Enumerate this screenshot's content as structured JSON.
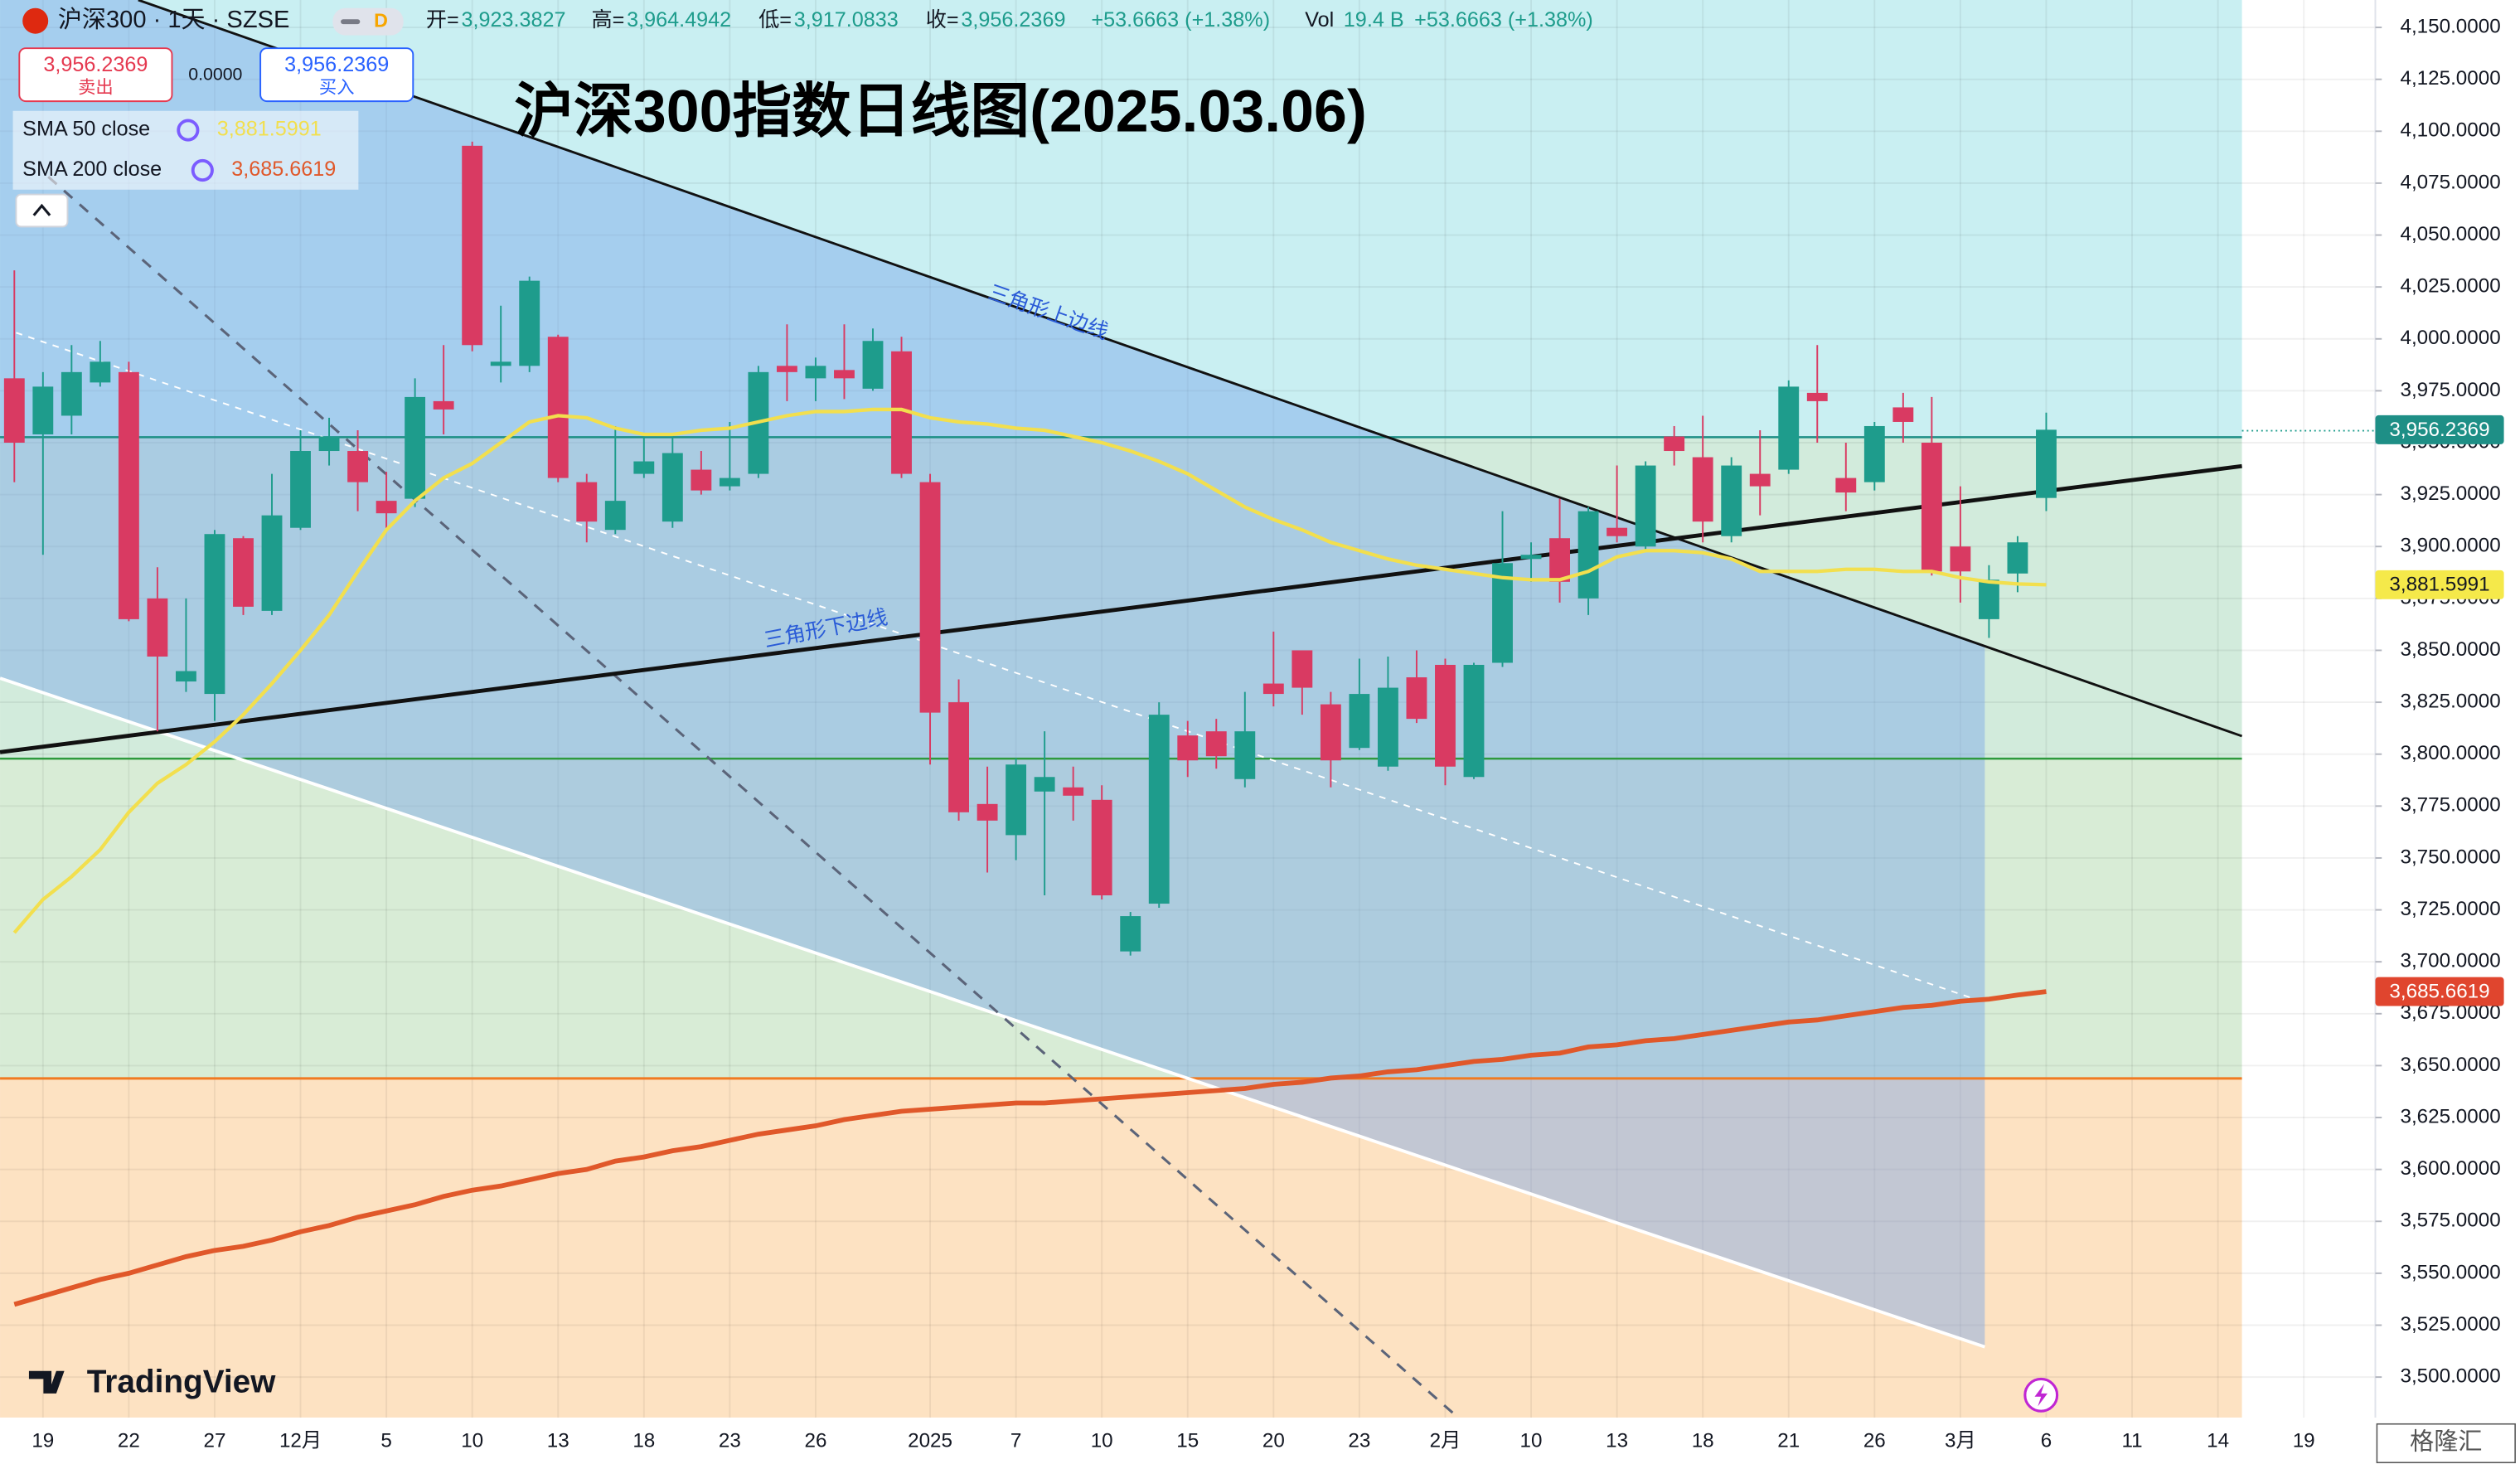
{
  "chart_data": {
    "type": "candlestick",
    "title": "沪深300指数日线图(2025.03.06)",
    "symbol": "沪深300 · 1天 · SZSE",
    "interval_badge": "D",
    "ohlc": [
      {
        "label": "开=",
        "value": "3,923.3827"
      },
      {
        "label": "高=",
        "value": "3,964.4942"
      },
      {
        "label": "低=",
        "value": "3,917.0833"
      },
      {
        "label": "收=",
        "value": "3,956.2369"
      }
    ],
    "change": "+53.6663 (+1.38%)",
    "vol_label": "Vol",
    "vol_value": "19.4 B",
    "vol_change": "+53.6663 (+1.38%)",
    "trade": {
      "sell_price": "3,956.2369",
      "sell_label": "卖出",
      "spread": "0.0000",
      "buy_price": "3,956.2369",
      "buy_label": "买入"
    },
    "last_price_label": "3,956.2369",
    "annotations": [
      "三角形上边线",
      "三角形下边线"
    ],
    "logo": "TradingView",
    "watermark": "格隆汇",
    "categories": [
      null,
      "19",
      null,
      null,
      "22",
      null,
      null,
      "27",
      null,
      null,
      "12月",
      null,
      null,
      "5",
      null,
      null,
      "10",
      null,
      null,
      "13",
      null,
      null,
      "18",
      null,
      null,
      "23",
      null,
      null,
      "26",
      null,
      null,
      null,
      "2025",
      null,
      null,
      "7",
      null,
      null,
      "10",
      null,
      null,
      "15",
      null,
      null,
      "20",
      null,
      null,
      "23",
      null,
      null,
      "2月",
      null,
      null,
      "10",
      null,
      null,
      "13",
      null,
      null,
      "18",
      null,
      null,
      "21",
      null,
      null,
      "26",
      null,
      null,
      "3月",
      null,
      null,
      "6",
      null,
      null,
      "11",
      null,
      null,
      "14",
      null,
      null,
      "19",
      null,
      null
    ],
    "open": [
      3981,
      3954,
      3963,
      3979,
      3984,
      3875,
      3835,
      3829,
      3904,
      3869,
      3909,
      3946,
      3946,
      3922,
      3923,
      3970,
      4093,
      3987,
      3987,
      4001,
      3931,
      3908,
      3935,
      3912,
      3937,
      3929,
      3935,
      3987,
      3981,
      3985,
      3976,
      3994,
      3931,
      3825,
      3776,
      3761,
      3782,
      3784,
      3778,
      3705,
      3728,
      3809,
      3811,
      3788,
      3834,
      3850,
      3824,
      3803,
      3794,
      3837,
      3843,
      3789,
      3844,
      3894,
      3904,
      3875,
      3909,
      3900,
      3953,
      3943,
      3905,
      3935,
      3937,
      3974,
      3933,
      3931,
      3967,
      3950,
      3900,
      3865,
      3887,
      3923.3827,
      null,
      null,
      null,
      null,
      null,
      null,
      null,
      null,
      null,
      null,
      null
    ],
    "high": [
      4033,
      3984,
      3997,
      3999,
      3989,
      3890,
      3875,
      3908,
      3905,
      3935,
      3956,
      3962,
      3956,
      3936,
      3981,
      3997,
      4095,
      4016,
      4030,
      4002,
      3935,
      3958,
      3954,
      3954,
      3946,
      3960,
      3987,
      4007,
      3991,
      4007,
      4005,
      4001,
      3935,
      3836,
      3794,
      3798,
      3811,
      3794,
      3785,
      3724,
      3825,
      3816,
      3817,
      3830,
      3859,
      3850,
      3830,
      3846,
      3847,
      3850,
      3846,
      3844,
      3917,
      3902,
      3923,
      3919,
      3939,
      3941,
      3958,
      3963,
      3943,
      3956,
      3980,
      3997,
      3950,
      3960,
      3974,
      3972,
      3929,
      3891,
      3905,
      3964.4942,
      null,
      null,
      null,
      null,
      null,
      null,
      null,
      null,
      null,
      null,
      null
    ],
    "low": [
      3931,
      3896,
      3954,
      3977,
      3864,
      3811,
      3830,
      3816,
      3867,
      3867,
      3908,
      3939,
      3917,
      3909,
      3919,
      3954,
      3994,
      3979,
      3984,
      3931,
      3902,
      3906,
      3933,
      3909,
      3925,
      3927,
      3933,
      3970,
      3970,
      3971,
      3975,
      3933,
      3795,
      3768,
      3743,
      3749,
      3732,
      3768,
      3730,
      3703,
      3726,
      3789,
      3793,
      3784,
      3823,
      3819,
      3784,
      3802,
      3792,
      3815,
      3785,
      3788,
      3842,
      3883,
      3873,
      3867,
      3902,
      3898,
      3939,
      3902,
      3902,
      3915,
      3935,
      3950,
      3917,
      3927,
      3950,
      3886,
      3873,
      3856,
      3878,
      3917.0833,
      null,
      null,
      null,
      null,
      null,
      null,
      null,
      null,
      null,
      null,
      null
    ],
    "close": [
      3950,
      3977,
      3984,
      3989,
      3865,
      3847,
      3840,
      3906,
      3871,
      3915,
      3946,
      3953,
      3931,
      3916,
      3972,
      3966,
      3997,
      3989,
      4028,
      3933,
      3912,
      3922,
      3941,
      3945,
      3927,
      3933,
      3984,
      3984,
      3987,
      3981,
      3999,
      3935,
      3820,
      3772,
      3768,
      3795,
      3789,
      3780,
      3732,
      3722,
      3819,
      3797,
      3799,
      3811,
      3829,
      3832,
      3797,
      3829,
      3832,
      3817,
      3794,
      3843,
      3892,
      3896,
      3883,
      3917,
      3905,
      3939,
      3946,
      3912,
      3939,
      3929,
      3977,
      3970,
      3926,
      3958,
      3960,
      3888,
      3888,
      3884,
      3902,
      3956.2369,
      null,
      null,
      null,
      null,
      null,
      null,
      null,
      null,
      null,
      null,
      null
    ],
    "up_color": "#1e9c8c",
    "down_color": "#d93a62",
    "series": [
      {
        "name": "SMA 50 close",
        "value_label": "3,881.5991",
        "color": "#f2df4e",
        "values": [
          3714,
          3730,
          3741,
          3754,
          3772,
          3786,
          3795,
          3806,
          3819,
          3834,
          3850,
          3867,
          3888,
          3908,
          3922,
          3933,
          3940,
          3950,
          3960,
          3963,
          3962,
          3957,
          3954,
          3954,
          3956,
          3957,
          3960,
          3963,
          3965,
          3965,
          3966,
          3966,
          3962,
          3960,
          3959,
          3957,
          3956,
          3953,
          3950,
          3946,
          3941,
          3935,
          3927,
          3919,
          3913,
          3908,
          3902,
          3898,
          3894,
          3891,
          3889,
          3887,
          3885,
          3884,
          3884,
          3888,
          3895,
          3898,
          3898,
          3897,
          3894,
          3888,
          3888,
          3888,
          3889,
          3889,
          3888,
          3888,
          3885,
          3883,
          3882,
          3881.5991,
          null,
          null,
          null,
          null,
          null,
          null,
          null,
          null,
          null,
          null,
          null
        ]
      },
      {
        "name": "SMA 200 close",
        "value_label": "3,685.6619",
        "color": "#e0582a",
        "values": [
          3535,
          3539,
          3543,
          3547,
          3550,
          3554,
          3558,
          3561,
          3563,
          3566,
          3570,
          3573,
          3577,
          3580,
          3583,
          3587,
          3590,
          3592,
          3595,
          3598,
          3600,
          3604,
          3606,
          3609,
          3611,
          3614,
          3617,
          3619,
          3621,
          3624,
          3626,
          3628,
          3629,
          3630,
          3631,
          3632,
          3632,
          3633,
          3634,
          3635,
          3636,
          3637,
          3638,
          3639,
          3641,
          3642,
          3644,
          3645,
          3647,
          3648,
          3650,
          3652,
          3653,
          3655,
          3656,
          3659,
          3660,
          3662,
          3663,
          3665,
          3667,
          3669,
          3671,
          3672,
          3674,
          3676,
          3678,
          3679,
          3681,
          3682,
          3684,
          3685.6619,
          null,
          null,
          null,
          null,
          null,
          null,
          null,
          null,
          null,
          null,
          null
        ]
      }
    ],
    "ylim": [
      3480.5,
      4163.2
    ],
    "yticks": [
      {
        "value": 3500,
        "label": "3,500.0000"
      },
      {
        "value": 3525,
        "label": "3,525.0000"
      },
      {
        "value": 3550,
        "label": "3,550.0000"
      },
      {
        "value": 3575,
        "label": "3,575.0000"
      },
      {
        "value": 3600,
        "label": "3,600.0000"
      },
      {
        "value": 3625,
        "label": "3,625.0000"
      },
      {
        "value": 3650,
        "label": "3,650.0000"
      },
      {
        "value": 3675,
        "label": "3,675.0000"
      },
      {
        "value": 3700,
        "label": "3,700.0000"
      },
      {
        "value": 3725,
        "label": "3,725.0000"
      },
      {
        "value": 3750,
        "label": "3,750.0000"
      },
      {
        "value": 3775,
        "label": "3,775.0000"
      },
      {
        "value": 3800,
        "label": "3,800.0000"
      },
      {
        "value": 3825,
        "label": "3,825.0000"
      },
      {
        "value": 3850,
        "label": "3,850.0000"
      },
      {
        "value": 3875,
        "label": "3,875.0000"
      },
      {
        "value": 3900,
        "label": "3,900.0000"
      },
      {
        "value": 3925,
        "label": "3,925.0000"
      },
      {
        "value": 3950,
        "label": "3,950.0000"
      },
      {
        "value": 3975,
        "label": "3,975.0000"
      },
      {
        "value": 4000,
        "label": "4,000.0000"
      },
      {
        "value": 4025,
        "label": "4,025.0000"
      },
      {
        "value": 4050,
        "label": "4,050.0000"
      },
      {
        "value": 4075,
        "label": "4,075.0000"
      },
      {
        "value": 4100,
        "label": "4,100.0000"
      },
      {
        "value": 4125,
        "label": "4,125.0000"
      },
      {
        "value": 4150,
        "label": "4,150.0000"
      }
    ],
    "grid": true
  }
}
